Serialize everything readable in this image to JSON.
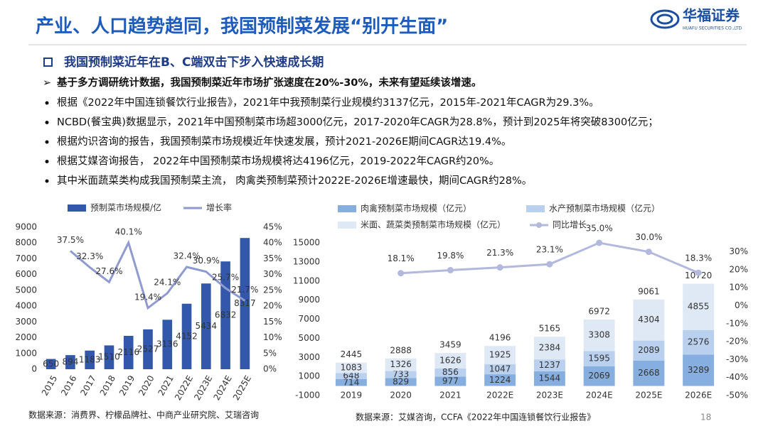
{
  "header": {
    "title": "产业、人口趋势趋同，我国预制菜发展“别开生面”",
    "logo_name": "华福证券",
    "logo_subtitle": "HUAFU SECURITIES CO.,LTD"
  },
  "section": {
    "heading": "我国预制菜近年在B、C端双击下步入快速成长期",
    "lead": "基于多方调研统计数据，我国预制菜近年市场扩张速度在20%-30%，未来有望延续该增速。",
    "bullets": [
      "根据《2022年中国连锁餐饮行业报告》，2021年中我预制菜行业规模约3137亿元，2015年-2021年CAGR为29.3%。",
      "NCBD(餐宝典)数据显示，2021年中国预制菜市场超3000亿元，2017-2020年CAGR为28.8%，预计到2025年将突破8300亿元；",
      "根据灼识咨询的报告，我国预制菜市场规模近年快速发展，预计2021-2026E期间CAGR达19.4%。",
      "根据艾媒咨询报告， 2022年中国预制菜市场规模将达4196亿元，2019-2022年CAGR约20%。",
      "其中米面蔬菜类构成我国预制菜主流， 肉禽类预制菜预计2022E-2026E增速最快，期间CAGR约28%。"
    ]
  },
  "sources": [
    "数据来源：消费界、柠檬品牌社、中商产业研究院、艾瑞咨询",
    "数据来源：艾媒咨询，CCFA《2022年中国连锁餐饮行业报告》"
  ],
  "page_number": 18,
  "chart_data": [
    {
      "type": "bar",
      "categories": [
        "2015",
        "2016",
        "2017",
        "2018",
        "2019",
        "2020",
        "2021",
        "2022E",
        "2023E",
        "2024E",
        "2025E"
      ],
      "series": [
        {
          "name": "预制菜市场规模/亿",
          "color": "#3358ab",
          "values": [
            650,
            894,
            1183,
            1510,
            2116,
            2527,
            3136,
            4152,
            5434,
            6832,
            8317
          ]
        },
        {
          "name": "增长率",
          "type": "line",
          "axis": "y2",
          "color": "#8f9bd0",
          "values": [
            null,
            37.5,
            32.3,
            27.6,
            40.1,
            19.4,
            24.1,
            32.4,
            30.9,
            25.7,
            21.7
          ],
          "value_labels": [
            null,
            "37.5%",
            "32.3%",
            "27.6%",
            "40.1%",
            "19.4%",
            "24.1%",
            "32.4%",
            "30.9%",
            "25.7%",
            "21.7%"
          ]
        }
      ],
      "ylim": [
        0,
        9000
      ],
      "yticks": [
        0,
        1000,
        2000,
        3000,
        4000,
        5000,
        6000,
        7000,
        8000,
        9000
      ],
      "y2lim": [
        0,
        45
      ],
      "y2ticks": [
        {
          "value": 0,
          "label": "0%"
        },
        {
          "value": 5,
          "label": "5%"
        },
        {
          "value": 10,
          "label": "10%"
        },
        {
          "value": 15,
          "label": "15%"
        },
        {
          "value": 20,
          "label": "20%"
        },
        {
          "value": 25,
          "label": "25%"
        },
        {
          "value": 30,
          "label": "30%"
        },
        {
          "value": 35,
          "label": "35%"
        },
        {
          "value": 40,
          "label": "40%"
        },
        {
          "value": 45,
          "label": "45%"
        }
      ]
    },
    {
      "type": "stacked_bar",
      "categories": [
        "2019",
        "2020",
        "2021",
        "2022E",
        "2023E",
        "2024E",
        "2025E",
        "2026E"
      ],
      "series": [
        {
          "name": "肉禽预制菜市场规模（亿元）",
          "color": "#86aede",
          "values": [
            714,
            829,
            977,
            1224,
            1544,
            2069,
            2668,
            3289
          ]
        },
        {
          "name": "水产预制菜市场规模（亿元）",
          "color": "#b9d0ee",
          "values": [
            648,
            733,
            856,
            1047,
            1237,
            1595,
            2089,
            2576
          ]
        },
        {
          "name": "米面、蔬菜类预制菜市场规模（亿元）",
          "color": "#dfe9f6",
          "values": [
            1083,
            1326,
            1626,
            1925,
            2384,
            3308,
            4304,
            4855
          ]
        },
        {
          "name": "同比增长",
          "type": "line",
          "axis": "y2",
          "color": "#b3b8dd",
          "markers": true,
          "values": [
            null,
            18.1,
            19.8,
            21.3,
            23.1,
            35.0,
            30.0,
            18.3
          ],
          "value_labels": [
            null,
            "18.1%",
            "19.8%",
            "21.3%",
            "23.1%",
            "35.0%",
            "30.0%",
            "18.3%"
          ]
        }
      ],
      "totals": [
        2445,
        2888,
        3459,
        4196,
        5165,
        6972,
        9061,
        10720
      ],
      "ylim": [
        -1000,
        15000
      ],
      "yticks": [
        -1000,
        1000,
        3000,
        5000,
        7000,
        9000,
        11000,
        13000,
        15000
      ],
      "y2lim": [
        -50,
        35
      ],
      "y2ticks": [
        {
          "value": -50,
          "label": "-50%"
        },
        {
          "value": -40,
          "label": "-40%"
        },
        {
          "value": -30,
          "label": "-30%"
        },
        {
          "value": -20,
          "label": "-20%"
        },
        {
          "value": -10,
          "label": "-10%"
        },
        {
          "value": 0,
          "label": "0%"
        },
        {
          "value": 10,
          "label": "10%"
        },
        {
          "value": 20,
          "label": "20%"
        },
        {
          "value": 30,
          "label": "30%"
        }
      ]
    }
  ]
}
